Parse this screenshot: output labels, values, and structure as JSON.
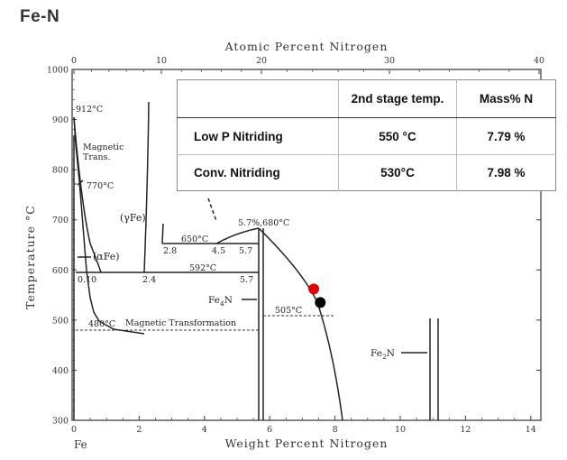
{
  "title": "Fe-N",
  "axes": {
    "top_label": "Atomic Percent Nitrogen",
    "bottom_label": "Weight Percent Nitrogen",
    "left_label": "Temperature °C",
    "fe_label": "Fe",
    "y_ticks": [
      "1000",
      "900",
      "800",
      "700",
      "600",
      "500",
      "400",
      "300"
    ],
    "x_bottom_ticks": [
      "0",
      "2",
      "4",
      "6",
      "8",
      "10",
      "12",
      "14"
    ],
    "x_top_ticks": [
      "0",
      "10",
      "20",
      "30",
      "40"
    ]
  },
  "annotations": {
    "t912": "912°C",
    "magnetic_trans_1": "Magnetic",
    "magnetic_trans_2": "Trans.",
    "t770": "770°C",
    "gamma_fe": "(γFe)",
    "alpha_fe": "(αFe)",
    "t650": "650°C",
    "c28": "2.8",
    "c45": "4.5",
    "c57a": "5.7",
    "t680": "5.7%,680°C",
    "t592": "592°C",
    "c010": "0.10",
    "c24": "2.4",
    "c57b": "5.7",
    "fe4n_1": "Fe",
    "fe4n_2": "4",
    "fe4n_3": "N",
    "t505": "505°C",
    "t480": "480°C",
    "mag_transformation": "Magnetic Transformation",
    "fe2n_1": "Fe",
    "fe2n_2": "2",
    "fe2n_3": "N"
  },
  "points": [
    {
      "label": "Low P Nitriding",
      "wt_percent_N": 7.35,
      "temperature_C": 562,
      "color": "#e00000"
    },
    {
      "label": "Conv. Nitriding",
      "wt_percent_N": 7.55,
      "temperature_C": 535,
      "color": "#000000"
    }
  ],
  "table": {
    "headers": [
      "",
      "2nd stage temp.",
      "Mass% N"
    ],
    "rows": [
      {
        "name": "Low P Nitriding",
        "temp": "550 °C",
        "mass": "7.79 %"
      },
      {
        "name": "Conv. Nitriding",
        "temp": "530°C",
        "mass": "7.98 %"
      }
    ]
  }
}
